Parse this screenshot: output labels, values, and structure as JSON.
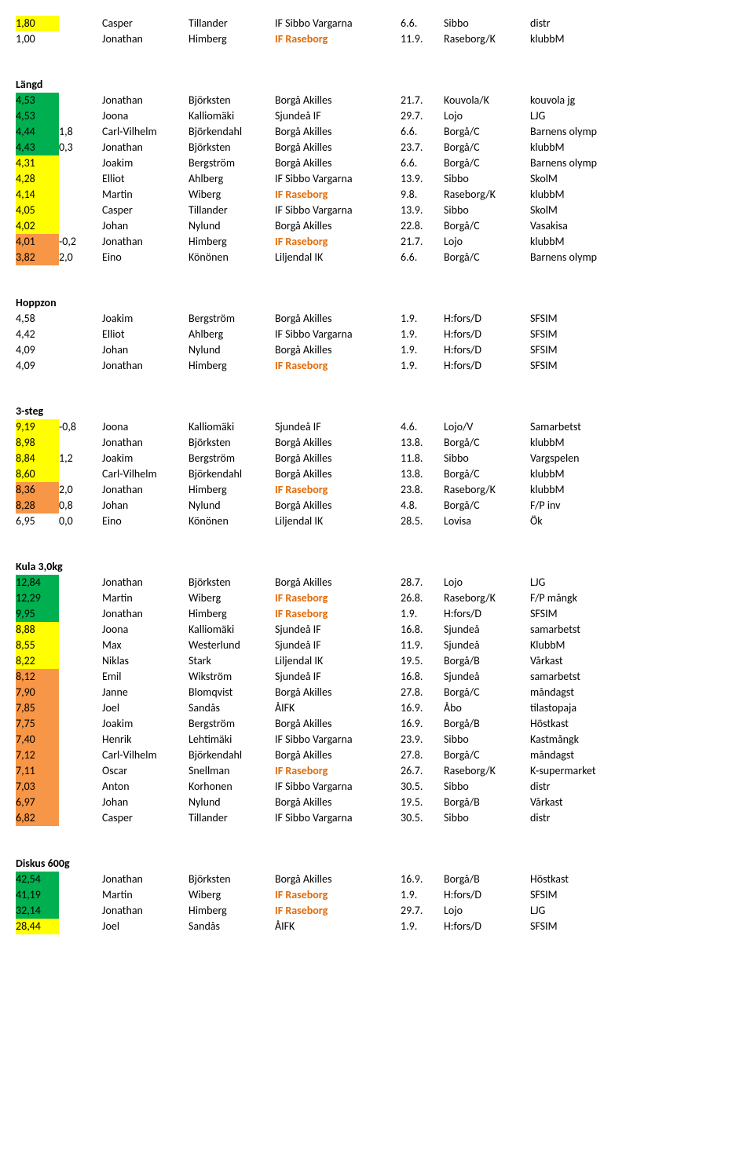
{
  "colors": {
    "yellow": "#ffff00",
    "green": "#00b050",
    "orange_bg": "#f79646",
    "orange_text": "#e26b0a"
  },
  "sections": [
    {
      "title": null,
      "rows": [
        {
          "m": "1,80",
          "mc": "Y",
          "w": "",
          "fn": "Casper",
          "ln": "Tillander",
          "cl": "IF Sibbo Vargarna",
          "d": "6.6.",
          "p": "Sibbo",
          "ev": "distr"
        },
        {
          "m": "1,00",
          "mc": "",
          "w": "",
          "fn": "Jonathan",
          "ln": "Himberg",
          "cl": "IF Raseborg",
          "clOr": true,
          "d": "11.9.",
          "p": "Raseborg/K",
          "ev": "klubbM"
        }
      ]
    },
    {
      "title": "Längd",
      "rows": [
        {
          "m": "4,53",
          "mc": "G",
          "w": "",
          "fn": "Jonathan",
          "ln": "Björksten",
          "cl": "Borgå Akilles",
          "d": "21.7.",
          "p": "Kouvola/K",
          "ev": "kouvola jg"
        },
        {
          "m": "4,53",
          "mc": "G",
          "w": "",
          "fn": "Joona",
          "ln": "Kalliomäki",
          "cl": "Sjundeå IF",
          "d": "29.7.",
          "p": "Lojo",
          "ev": "LJG"
        },
        {
          "m": "4,44",
          "mc": "G",
          "w": "1,8",
          "fn": "Carl-Vilhelm",
          "ln": "Björkendahl",
          "cl": "Borgå Akilles",
          "d": "6.6.",
          "p": "Borgå/C",
          "ev": "Barnens olymp"
        },
        {
          "m": "4,43",
          "mc": "G",
          "w": "0,3",
          "fn": "Jonathan",
          "ln": "Björksten",
          "cl": "Borgå Akilles",
          "d": "23.7.",
          "p": "Borgå/C",
          "ev": "klubbM"
        },
        {
          "m": "4,31",
          "mc": "Y",
          "w": "",
          "fn": "Joakim",
          "ln": "Bergström",
          "cl": "Borgå Akilles",
          "d": "6.6.",
          "p": "Borgå/C",
          "ev": "Barnens olymp"
        },
        {
          "m": "4,28",
          "mc": "Y",
          "w": "",
          "fn": "Elliot",
          "ln": "Ahlberg",
          "cl": "IF Sibbo Vargarna",
          "d": "13.9.",
          "p": "Sibbo",
          "ev": "SkolM"
        },
        {
          "m": "4,14",
          "mc": "Y",
          "w": "",
          "fn": "Martin",
          "ln": "Wiberg",
          "cl": "IF Raseborg",
          "clOr": true,
          "d": "9.8.",
          "p": "Raseborg/K",
          "ev": "klubbM"
        },
        {
          "m": "4,05",
          "mc": "Y",
          "w": "",
          "fn": "Casper",
          "ln": "Tillander",
          "cl": "IF Sibbo Vargarna",
          "d": "13.9.",
          "p": "Sibbo",
          "ev": "SkolM"
        },
        {
          "m": "4,02",
          "mc": "Y",
          "w": "",
          "fn": "Johan",
          "ln": "Nylund",
          "cl": "Borgå Akilles",
          "d": "22.8.",
          "p": "Borgå/C",
          "ev": "Vasakisa"
        },
        {
          "m": "4,01",
          "mc": "O",
          "w": "-0,2",
          "fn": "Jonathan",
          "ln": "Himberg",
          "cl": "IF Raseborg",
          "clOr": true,
          "d": "21.7.",
          "p": "Lojo",
          "ev": "klubbM"
        },
        {
          "m": "3,82",
          "mc": "O",
          "w": "2,0",
          "fn": "Eino",
          "ln": "Könönen",
          "cl": "Liljendal IK",
          "d": "6.6.",
          "p": "Borgå/C",
          "ev": "Barnens olymp"
        }
      ]
    },
    {
      "title": "Hoppzon",
      "rows": [
        {
          "m": "4,58",
          "mc": "",
          "w": "",
          "fn": "Joakim",
          "ln": "Bergström",
          "cl": "Borgå Akilles",
          "d": "1.9.",
          "p": "H:fors/D",
          "ev": "SFSIM"
        },
        {
          "m": "4,42",
          "mc": "",
          "w": "",
          "fn": "Elliot",
          "ln": "Ahlberg",
          "cl": "IF Sibbo Vargarna",
          "d": "1.9.",
          "p": "H:fors/D",
          "ev": "SFSIM"
        },
        {
          "m": "4,09",
          "mc": "",
          "w": "",
          "fn": "Johan",
          "ln": "Nylund",
          "cl": "Borgå Akilles",
          "d": "1.9.",
          "p": "H:fors/D",
          "ev": "SFSIM"
        },
        {
          "m": "4,09",
          "mc": "",
          "w": "",
          "fn": "Jonathan",
          "ln": "Himberg",
          "cl": "IF Raseborg",
          "clOr": true,
          "d": "1.9.",
          "p": "H:fors/D",
          "ev": "SFSIM"
        }
      ]
    },
    {
      "title": "3-steg",
      "rows": [
        {
          "m": "9,19",
          "mc": "Y",
          "w": "-0,8",
          "fn": "Joona",
          "ln": "Kalliomäki",
          "cl": "Sjundeå IF",
          "d": "4.6.",
          "p": "Lojo/V",
          "ev": "Samarbetst"
        },
        {
          "m": "8,98",
          "mc": "Y",
          "w": "",
          "fn": "Jonathan",
          "ln": "Björksten",
          "cl": "Borgå Akilles",
          "d": "13.8.",
          "p": "Borgå/C",
          "ev": "klubbM"
        },
        {
          "m": "8,84",
          "mc": "Y",
          "w": "1,2",
          "fn": "Joakim",
          "ln": "Bergström",
          "cl": "Borgå Akilles",
          "d": "11.8.",
          "p": "Sibbo",
          "ev": "Vargspelen"
        },
        {
          "m": "8,60",
          "mc": "Y",
          "w": "",
          "fn": "Carl-Vilhelm",
          "ln": "Björkendahl",
          "cl": "Borgå Akilles",
          "d": "13.8.",
          "p": "Borgå/C",
          "ev": "klubbM"
        },
        {
          "m": "8,36",
          "mc": "O",
          "w": "2,0",
          "fn": "Jonathan",
          "ln": "Himberg",
          "cl": "IF Raseborg",
          "clOr": true,
          "d": "23.8.",
          "p": "Raseborg/K",
          "ev": "klubbM"
        },
        {
          "m": "8,28",
          "mc": "O",
          "w": "0,8",
          "fn": "Johan",
          "ln": "Nylund",
          "cl": "Borgå Akilles",
          "d": "4.8.",
          "p": "Borgå/C",
          "ev": "F/P inv"
        },
        {
          "m": "6,95",
          "mc": "",
          "w": "0,0",
          "fn": "Eino",
          "ln": "Könönen",
          "cl": "Liljendal IK",
          "d": "28.5.",
          "p": "Lovisa",
          "ev": "Ök"
        }
      ]
    },
    {
      "title": "Kula 3,0kg",
      "rows": [
        {
          "m": "12,84",
          "mc": "G",
          "w": "",
          "fn": "Jonathan",
          "ln": "Björksten",
          "cl": "Borgå Akilles",
          "d": "28.7.",
          "p": "Lojo",
          "ev": "LJG"
        },
        {
          "m": "12,29",
          "mc": "G",
          "w": "",
          "fn": "Martin",
          "ln": "Wiberg",
          "cl": "IF Raseborg",
          "clOr": true,
          "d": "26.8.",
          "p": "Raseborg/K",
          "ev": "F/P mångk"
        },
        {
          "m": "9,95",
          "mc": "G",
          "w": "",
          "fn": "Jonathan",
          "ln": "Himberg",
          "cl": "IF Raseborg",
          "clOr": true,
          "d": "1.9.",
          "p": "H:fors/D",
          "ev": "SFSIM"
        },
        {
          "m": "8,88",
          "mc": "Y",
          "w": "",
          "fn": "Joona",
          "ln": "Kalliomäki",
          "cl": "Sjundeå IF",
          "d": "16.8.",
          "p": "Sjundeå",
          "ev": "samarbetst"
        },
        {
          "m": "8,55",
          "mc": "Y",
          "w": "",
          "fn": "Max",
          "ln": "Westerlund",
          "cl": "Sjundeå IF",
          "d": "11.9.",
          "p": "Sjundeå",
          "ev": "KlubbM"
        },
        {
          "m": "8,22",
          "mc": "Y",
          "w": "",
          "fn": "Niklas",
          "ln": "Stark",
          "cl": "Liljendal IK",
          "d": "19.5.",
          "p": "Borgå/B",
          "ev": "Vårkast"
        },
        {
          "m": "8,12",
          "mc": "O",
          "w": "",
          "fn": "Emil",
          "ln": "Wikström",
          "cl": "Sjundeå IF",
          "d": "16.8.",
          "p": "Sjundeå",
          "ev": "samarbetst"
        },
        {
          "m": "7,90",
          "mc": "O",
          "w": "",
          "fn": "Janne",
          "ln": "Blomqvist",
          "cl": "Borgå Akilles",
          "d": "27.8.",
          "p": "Borgå/C",
          "ev": "måndagst"
        },
        {
          "m": "7,85",
          "mc": "O",
          "w": "",
          "fn": "Joel",
          "ln": "Sandås",
          "cl": "ÅIFK",
          "d": "16.9.",
          "p": "Åbo",
          "ev": "tilastopaja"
        },
        {
          "m": "7,75",
          "mc": "O",
          "w": "",
          "fn": "Joakim",
          "ln": "Bergström",
          "cl": "Borgå Akilles",
          "d": "16.9.",
          "p": "Borgå/B",
          "ev": "Höstkast"
        },
        {
          "m": "7,40",
          "mc": "O",
          "w": "",
          "fn": "Henrik",
          "ln": "Lehtimäki",
          "cl": "IF Sibbo Vargarna",
          "d": "23.9.",
          "p": "Sibbo",
          "ev": "Kastmångk"
        },
        {
          "m": "7,12",
          "mc": "O",
          "w": "",
          "fn": "Carl-Vilhelm",
          "ln": "Björkendahl",
          "cl": "Borgå Akilles",
          "d": "27.8.",
          "p": "Borgå/C",
          "ev": "måndagst"
        },
        {
          "m": "7,11",
          "mc": "O",
          "w": "",
          "fn": "Oscar",
          "ln": "Snellman",
          "cl": "IF Raseborg",
          "clOr": true,
          "d": "26.7.",
          "p": "Raseborg/K",
          "ev": "K-supermarket"
        },
        {
          "m": "7,03",
          "mc": "O",
          "w": "",
          "fn": "Anton",
          "ln": "Korhonen",
          "cl": "IF Sibbo Vargarna",
          "d": "30.5.",
          "p": "Sibbo",
          "ev": "distr"
        },
        {
          "m": "6,97",
          "mc": "O",
          "w": "",
          "fn": "Johan",
          "ln": "Nylund",
          "cl": "Borgå Akilles",
          "d": "19.5.",
          "p": "Borgå/B",
          "ev": "Vårkast"
        },
        {
          "m": "6,82",
          "mc": "O",
          "w": "",
          "fn": "Casper",
          "ln": "Tillander",
          "cl": "IF Sibbo Vargarna",
          "d": "30.5.",
          "p": "Sibbo",
          "ev": "distr"
        }
      ]
    },
    {
      "title": "Diskus 600g",
      "rows": [
        {
          "m": "42,54",
          "mc": "G",
          "w": "",
          "fn": "Jonathan",
          "ln": "Björksten",
          "cl": "Borgå Akilles",
          "d": "16.9.",
          "p": "Borgå/B",
          "ev": "Höstkast"
        },
        {
          "m": "41,19",
          "mc": "G",
          "w": "",
          "fn": "Martin",
          "ln": "Wiberg",
          "cl": "IF Raseborg",
          "clOr": true,
          "d": "1.9.",
          "p": "H:fors/D",
          "ev": "SFSIM"
        },
        {
          "m": "32,14",
          "mc": "G",
          "w": "",
          "fn": "Jonathan",
          "ln": "Himberg",
          "cl": "IF Raseborg",
          "clOr": true,
          "d": "29.7.",
          "p": "Lojo",
          "ev": "LJG"
        },
        {
          "m": "28,44",
          "mc": "Y",
          "w": "",
          "fn": "Joel",
          "ln": "Sandås",
          "cl": "ÅIFK",
          "d": "1.9.",
          "p": "H:fors/D",
          "ev": "SFSIM"
        }
      ]
    }
  ]
}
